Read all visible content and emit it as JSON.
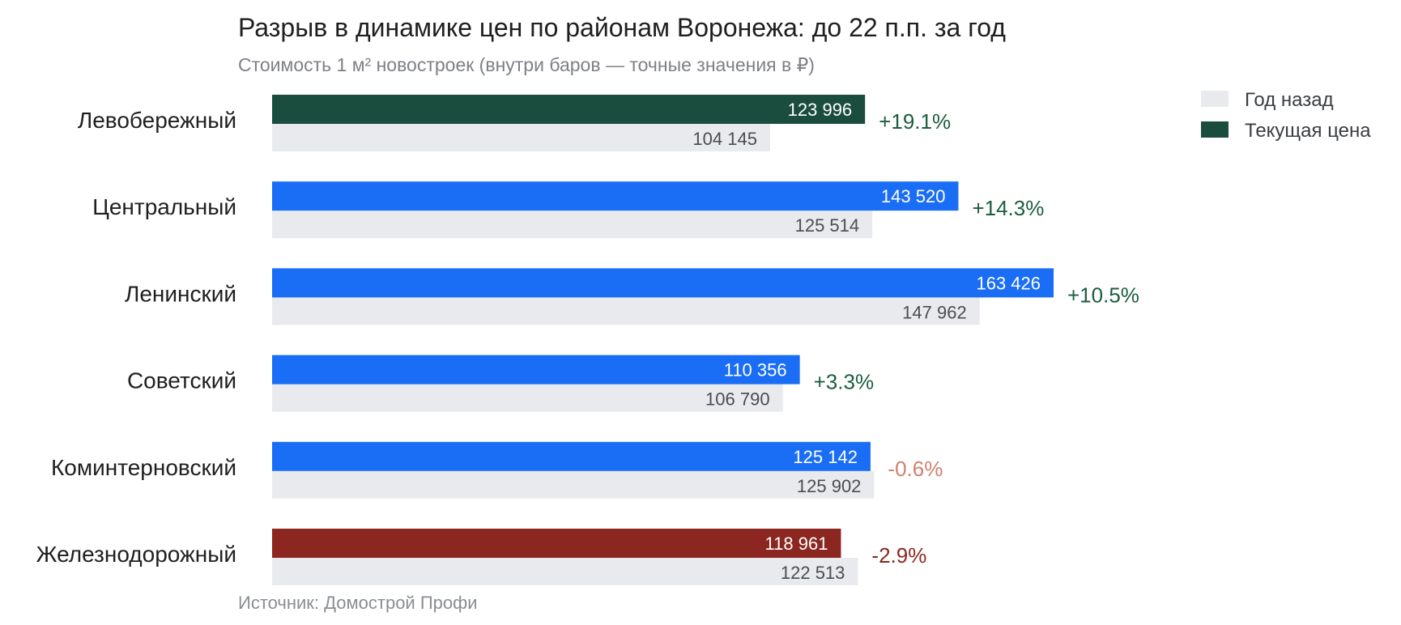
{
  "chart_data": {
    "type": "bar",
    "orientation": "horizontal",
    "title": "Разрыв в динамике цен по районам Воронежа: до 22 п.п. за год",
    "subtitle": "Стоимость 1 м² новостроек (внутри баров — точные значения в ₽)",
    "source": "Источник: Домострой Профи",
    "categories": [
      "Левобережный",
      "Центральный",
      "Ленинский",
      "Советский",
      "Коминтерновский",
      "Железнодорожный"
    ],
    "series": [
      {
        "name": "Год назад",
        "color": "#e8eaed",
        "values": [
          104145,
          125514,
          147962,
          106790,
          125902,
          122513
        ],
        "labels": [
          "104 145",
          "125 514",
          "147 962",
          "106 790",
          "125 902",
          "122 513"
        ]
      },
      {
        "name": "Текущая цена",
        "color": "#1b4d3e",
        "values": [
          123996,
          143520,
          163426,
          110356,
          125142,
          118961
        ],
        "labels": [
          "123 996",
          "143 520",
          "163 426",
          "110 356",
          "125 142",
          "118 961"
        ],
        "bar_colors": [
          "#1b4d3e",
          "#1a6ef5",
          "#1a6ef5",
          "#1a6ef5",
          "#1a6ef5",
          "#8b2720"
        ]
      }
    ],
    "changes": [
      "+19.1%",
      "+14.3%",
      "+10.5%",
      "+3.3%",
      "-0.6%",
      "-2.9%"
    ],
    "change_colors": [
      "#1b5e3f",
      "#1b5e3f",
      "#1b5e3f",
      "#1b5e3f",
      "#d0806f",
      "#8b2720"
    ],
    "xlim": [
      0,
      163426
    ],
    "legend": {
      "position": "top-right",
      "items": [
        {
          "label": "Год назад",
          "color": "#e8eaed"
        },
        {
          "label": "Текущая цена",
          "color": "#1b4d3e"
        }
      ]
    },
    "grid": false
  }
}
